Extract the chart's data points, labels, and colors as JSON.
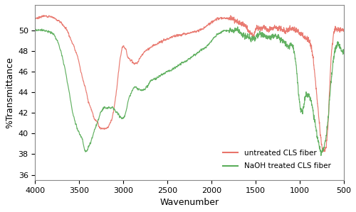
{
  "xlabel": "Wavenumber",
  "ylabel": "%Transmittance",
  "xlim": [
    4000,
    500
  ],
  "ylim": [
    35.5,
    52.5
  ],
  "yticks": [
    36,
    38,
    40,
    42,
    44,
    46,
    48,
    50
  ],
  "xticks": [
    4000,
    3500,
    3000,
    2500,
    2000,
    1500,
    1000,
    500
  ],
  "line_color_untreated": "#e8746a",
  "line_color_naoh": "#5aad5a",
  "legend_labels": [
    "untreated CLS fiber",
    "NaOH treated CLS fiber"
  ],
  "background_color": "#ffffff",
  "untreated_pts": [
    [
      4000,
      51.2
    ],
    [
      3950,
      51.3
    ],
    [
      3900,
      51.4
    ],
    [
      3850,
      51.4
    ],
    [
      3800,
      51.3
    ],
    [
      3780,
      51.2
    ],
    [
      3750,
      51.0
    ],
    [
      3720,
      50.9
    ],
    [
      3700,
      50.7
    ],
    [
      3670,
      50.4
    ],
    [
      3650,
      50.2
    ],
    [
      3620,
      49.7
    ],
    [
      3600,
      49.2
    ],
    [
      3570,
      48.7
    ],
    [
      3550,
      48.2
    ],
    [
      3520,
      47.5
    ],
    [
      3500,
      46.8
    ],
    [
      3480,
      46.0
    ],
    [
      3450,
      45.0
    ],
    [
      3420,
      44.0
    ],
    [
      3400,
      43.2
    ],
    [
      3370,
      42.5
    ],
    [
      3350,
      42.0
    ],
    [
      3330,
      41.5
    ],
    [
      3300,
      41.2
    ],
    [
      3280,
      40.8
    ],
    [
      3250,
      40.5
    ],
    [
      3220,
      40.5
    ],
    [
      3200,
      40.5
    ],
    [
      3170,
      40.7
    ],
    [
      3150,
      41.0
    ],
    [
      3120,
      41.8
    ],
    [
      3100,
      42.8
    ],
    [
      3080,
      44.0
    ],
    [
      3060,
      45.5
    ],
    [
      3040,
      47.0
    ],
    [
      3020,
      48.0
    ],
    [
      3000,
      48.5
    ],
    [
      2990,
      48.4
    ],
    [
      2975,
      48.2
    ],
    [
      2960,
      47.8
    ],
    [
      2950,
      47.5
    ],
    [
      2935,
      47.3
    ],
    [
      2920,
      47.2
    ],
    [
      2900,
      47.0
    ],
    [
      2880,
      46.8
    ],
    [
      2860,
      46.8
    ],
    [
      2845,
      46.9
    ],
    [
      2820,
      47.2
    ],
    [
      2800,
      47.5
    ],
    [
      2770,
      47.8
    ],
    [
      2750,
      48.0
    ],
    [
      2720,
      48.2
    ],
    [
      2700,
      48.3
    ],
    [
      2670,
      48.5
    ],
    [
      2650,
      48.6
    ],
    [
      2600,
      48.8
    ],
    [
      2550,
      49.0
    ],
    [
      2500,
      49.2
    ],
    [
      2450,
      49.4
    ],
    [
      2400,
      49.5
    ],
    [
      2350,
      49.6
    ],
    [
      2300,
      49.7
    ],
    [
      2250,
      49.8
    ],
    [
      2200,
      49.9
    ],
    [
      2150,
      50.0
    ],
    [
      2100,
      50.2
    ],
    [
      2050,
      50.5
    ],
    [
      2000,
      50.8
    ],
    [
      1970,
      51.0
    ],
    [
      1950,
      51.1
    ],
    [
      1900,
      51.2
    ],
    [
      1850,
      51.2
    ],
    [
      1800,
      51.2
    ],
    [
      1760,
      51.1
    ],
    [
      1730,
      51.0
    ],
    [
      1700,
      50.9
    ],
    [
      1680,
      50.8
    ],
    [
      1660,
      50.7
    ],
    [
      1640,
      50.6
    ],
    [
      1620,
      50.5
    ],
    [
      1600,
      50.3
    ],
    [
      1580,
      50.0
    ],
    [
      1560,
      49.8
    ],
    [
      1540,
      49.6
    ],
    [
      1530,
      49.5
    ],
    [
      1510,
      49.7
    ],
    [
      1500,
      50.0
    ],
    [
      1480,
      50.2
    ],
    [
      1460,
      50.2
    ],
    [
      1440,
      50.2
    ],
    [
      1420,
      50.3
    ],
    [
      1400,
      50.3
    ],
    [
      1380,
      50.2
    ],
    [
      1360,
      50.1
    ],
    [
      1340,
      50.2
    ],
    [
      1320,
      50.2
    ],
    [
      1300,
      50.3
    ],
    [
      1280,
      50.4
    ],
    [
      1260,
      50.3
    ],
    [
      1240,
      50.2
    ],
    [
      1220,
      50.2
    ],
    [
      1200,
      50.1
    ],
    [
      1180,
      50.0
    ],
    [
      1160,
      49.9
    ],
    [
      1140,
      50.0
    ],
    [
      1120,
      50.1
    ],
    [
      1100,
      50.2
    ],
    [
      1080,
      50.2
    ],
    [
      1060,
      50.1
    ],
    [
      1040,
      50.0
    ],
    [
      1020,
      49.9
    ],
    [
      1000,
      49.8
    ],
    [
      985,
      49.7
    ],
    [
      970,
      49.6
    ],
    [
      955,
      49.5
    ],
    [
      940,
      49.4
    ],
    [
      930,
      49.3
    ],
    [
      920,
      49.3
    ],
    [
      910,
      49.2
    ],
    [
      900,
      49.1
    ],
    [
      890,
      49.0
    ],
    [
      880,
      48.8
    ],
    [
      870,
      48.5
    ],
    [
      860,
      48.1
    ],
    [
      850,
      47.5
    ],
    [
      840,
      46.8
    ],
    [
      830,
      46.0
    ],
    [
      820,
      45.2
    ],
    [
      810,
      44.3
    ],
    [
      800,
      43.5
    ],
    [
      790,
      42.5
    ],
    [
      780,
      41.5
    ],
    [
      770,
      40.5
    ],
    [
      760,
      39.8
    ],
    [
      750,
      39.0
    ],
    [
      740,
      38.5
    ],
    [
      730,
      38.3
    ],
    [
      720,
      38.3
    ],
    [
      710,
      38.4
    ],
    [
      700,
      38.7
    ],
    [
      690,
      39.5
    ],
    [
      680,
      40.5
    ],
    [
      670,
      42.0
    ],
    [
      660,
      44.0
    ],
    [
      650,
      46.0
    ],
    [
      640,
      47.5
    ],
    [
      630,
      48.5
    ],
    [
      620,
      49.2
    ],
    [
      610,
      49.8
    ],
    [
      600,
      50.0
    ],
    [
      590,
      50.1
    ],
    [
      580,
      50.1
    ],
    [
      570,
      50.1
    ],
    [
      560,
      50.1
    ],
    [
      550,
      50.1
    ],
    [
      540,
      50.1
    ],
    [
      530,
      50.1
    ],
    [
      520,
      50.1
    ],
    [
      510,
      50.1
    ],
    [
      500,
      50.1
    ]
  ],
  "naoh_pts": [
    [
      4000,
      50.0
    ],
    [
      3980,
      50.05
    ],
    [
      3950,
      50.05
    ],
    [
      3920,
      50.05
    ],
    [
      3900,
      50.0
    ],
    [
      3880,
      50.0
    ],
    [
      3860,
      49.95
    ],
    [
      3840,
      49.9
    ],
    [
      3820,
      49.8
    ],
    [
      3800,
      49.7
    ],
    [
      3780,
      49.5
    ],
    [
      3760,
      49.2
    ],
    [
      3740,
      48.8
    ],
    [
      3720,
      48.3
    ],
    [
      3700,
      47.7
    ],
    [
      3680,
      47.0
    ],
    [
      3660,
      46.2
    ],
    [
      3640,
      45.2
    ],
    [
      3620,
      44.3
    ],
    [
      3600,
      43.3
    ],
    [
      3580,
      42.3
    ],
    [
      3560,
      41.5
    ],
    [
      3540,
      40.9
    ],
    [
      3520,
      40.4
    ],
    [
      3500,
      40.0
    ],
    [
      3480,
      39.7
    ],
    [
      3460,
      39.3
    ],
    [
      3450,
      38.8
    ],
    [
      3440,
      38.5
    ],
    [
      3430,
      38.3
    ],
    [
      3420,
      38.3
    ],
    [
      3410,
      38.4
    ],
    [
      3400,
      38.6
    ],
    [
      3380,
      39.0
    ],
    [
      3360,
      39.5
    ],
    [
      3340,
      40.0
    ],
    [
      3320,
      40.5
    ],
    [
      3300,
      41.0
    ],
    [
      3280,
      41.5
    ],
    [
      3260,
      42.0
    ],
    [
      3240,
      42.3
    ],
    [
      3220,
      42.5
    ],
    [
      3200,
      42.5
    ],
    [
      3180,
      42.5
    ],
    [
      3160,
      42.5
    ],
    [
      3140,
      42.5
    ],
    [
      3120,
      42.5
    ],
    [
      3100,
      42.3
    ],
    [
      3080,
      42.1
    ],
    [
      3060,
      41.9
    ],
    [
      3050,
      41.8
    ],
    [
      3040,
      41.7
    ],
    [
      3030,
      41.6
    ],
    [
      3020,
      41.5
    ],
    [
      3010,
      41.5
    ],
    [
      3000,
      41.5
    ],
    [
      2990,
      41.6
    ],
    [
      2975,
      42.0
    ],
    [
      2960,
      42.5
    ],
    [
      2950,
      43.0
    ],
    [
      2935,
      43.5
    ],
    [
      2920,
      43.8
    ],
    [
      2910,
      44.0
    ],
    [
      2900,
      44.2
    ],
    [
      2880,
      44.5
    ],
    [
      2860,
      44.5
    ],
    [
      2840,
      44.4
    ],
    [
      2820,
      44.3
    ],
    [
      2800,
      44.2
    ],
    [
      2780,
      44.2
    ],
    [
      2760,
      44.3
    ],
    [
      2740,
      44.5
    ],
    [
      2720,
      44.7
    ],
    [
      2700,
      45.0
    ],
    [
      2680,
      45.2
    ],
    [
      2650,
      45.3
    ],
    [
      2600,
      45.5
    ],
    [
      2550,
      45.8
    ],
    [
      2500,
      46.0
    ],
    [
      2450,
      46.2
    ],
    [
      2400,
      46.5
    ],
    [
      2350,
      46.8
    ],
    [
      2300,
      47.0
    ],
    [
      2250,
      47.3
    ],
    [
      2200,
      47.6
    ],
    [
      2150,
      47.9
    ],
    [
      2100,
      48.2
    ],
    [
      2050,
      48.5
    ],
    [
      2000,
      49.0
    ],
    [
      1970,
      49.3
    ],
    [
      1950,
      49.5
    ],
    [
      1920,
      49.7
    ],
    [
      1900,
      49.8
    ],
    [
      1880,
      49.9
    ],
    [
      1860,
      50.0
    ],
    [
      1840,
      50.0
    ],
    [
      1820,
      50.0
    ],
    [
      1800,
      50.0
    ],
    [
      1780,
      50.0
    ],
    [
      1760,
      50.0
    ],
    [
      1740,
      50.0
    ],
    [
      1720,
      50.0
    ],
    [
      1700,
      50.0
    ],
    [
      1690,
      50.0
    ],
    [
      1680,
      49.9
    ],
    [
      1670,
      49.8
    ],
    [
      1660,
      49.7
    ],
    [
      1650,
      49.6
    ],
    [
      1640,
      49.6
    ],
    [
      1630,
      49.5
    ],
    [
      1620,
      49.5
    ],
    [
      1610,
      49.5
    ],
    [
      1600,
      49.5
    ],
    [
      1590,
      49.4
    ],
    [
      1580,
      49.3
    ],
    [
      1570,
      49.3
    ],
    [
      1560,
      49.3
    ],
    [
      1550,
      49.2
    ],
    [
      1540,
      49.2
    ],
    [
      1520,
      49.2
    ],
    [
      1510,
      49.3
    ],
    [
      1500,
      49.3
    ],
    [
      1490,
      49.4
    ],
    [
      1480,
      49.5
    ],
    [
      1470,
      49.6
    ],
    [
      1460,
      49.7
    ],
    [
      1450,
      49.8
    ],
    [
      1440,
      49.7
    ],
    [
      1430,
      49.7
    ],
    [
      1420,
      49.6
    ],
    [
      1410,
      49.5
    ],
    [
      1400,
      49.5
    ],
    [
      1390,
      49.4
    ],
    [
      1380,
      49.4
    ],
    [
      1370,
      49.3
    ],
    [
      1360,
      49.4
    ],
    [
      1350,
      49.4
    ],
    [
      1340,
      49.4
    ],
    [
      1330,
      49.4
    ],
    [
      1320,
      49.4
    ],
    [
      1310,
      49.5
    ],
    [
      1300,
      49.5
    ],
    [
      1290,
      49.5
    ],
    [
      1280,
      49.5
    ],
    [
      1270,
      49.5
    ],
    [
      1260,
      49.5
    ],
    [
      1250,
      49.4
    ],
    [
      1240,
      49.4
    ],
    [
      1230,
      49.3
    ],
    [
      1220,
      49.2
    ],
    [
      1210,
      49.2
    ],
    [
      1200,
      49.1
    ],
    [
      1190,
      49.0
    ],
    [
      1180,
      48.9
    ],
    [
      1170,
      48.8
    ],
    [
      1160,
      48.7
    ],
    [
      1150,
      48.6
    ],
    [
      1140,
      48.5
    ],
    [
      1130,
      48.4
    ],
    [
      1120,
      48.5
    ],
    [
      1110,
      48.6
    ],
    [
      1100,
      48.7
    ],
    [
      1090,
      48.7
    ],
    [
      1080,
      48.5
    ],
    [
      1070,
      48.2
    ],
    [
      1060,
      47.8
    ],
    [
      1050,
      47.3
    ],
    [
      1040,
      46.7
    ],
    [
      1030,
      45.8
    ],
    [
      1020,
      44.8
    ],
    [
      1010,
      43.8
    ],
    [
      1000,
      43.0
    ],
    [
      990,
      42.5
    ],
    [
      980,
      42.2
    ],
    [
      970,
      42.1
    ],
    [
      960,
      42.3
    ],
    [
      950,
      42.8
    ],
    [
      940,
      43.3
    ],
    [
      930,
      43.6
    ],
    [
      920,
      43.8
    ],
    [
      910,
      43.8
    ],
    [
      900,
      43.8
    ],
    [
      890,
      43.7
    ],
    [
      880,
      43.5
    ],
    [
      870,
      43.2
    ],
    [
      860,
      42.8
    ],
    [
      850,
      42.3
    ],
    [
      840,
      41.8
    ],
    [
      830,
      41.3
    ],
    [
      820,
      40.8
    ],
    [
      810,
      40.3
    ],
    [
      800,
      39.8
    ],
    [
      790,
      39.3
    ],
    [
      780,
      38.8
    ],
    [
      770,
      38.5
    ],
    [
      760,
      38.3
    ],
    [
      750,
      38.2
    ],
    [
      740,
      38.3
    ],
    [
      730,
      38.5
    ],
    [
      720,
      38.8
    ],
    [
      710,
      39.2
    ],
    [
      700,
      39.7
    ],
    [
      690,
      40.3
    ],
    [
      680,
      41.0
    ],
    [
      670,
      42.0
    ],
    [
      660,
      43.2
    ],
    [
      650,
      44.3
    ],
    [
      640,
      45.2
    ],
    [
      630,
      46.0
    ],
    [
      620,
      46.8
    ],
    [
      610,
      47.5
    ],
    [
      600,
      48.0
    ],
    [
      590,
      48.3
    ],
    [
      580,
      48.5
    ],
    [
      570,
      48.6
    ],
    [
      560,
      48.6
    ],
    [
      550,
      48.5
    ],
    [
      540,
      48.4
    ],
    [
      530,
      48.2
    ],
    [
      520,
      48.0
    ],
    [
      510,
      47.9
    ],
    [
      500,
      48.0
    ]
  ]
}
